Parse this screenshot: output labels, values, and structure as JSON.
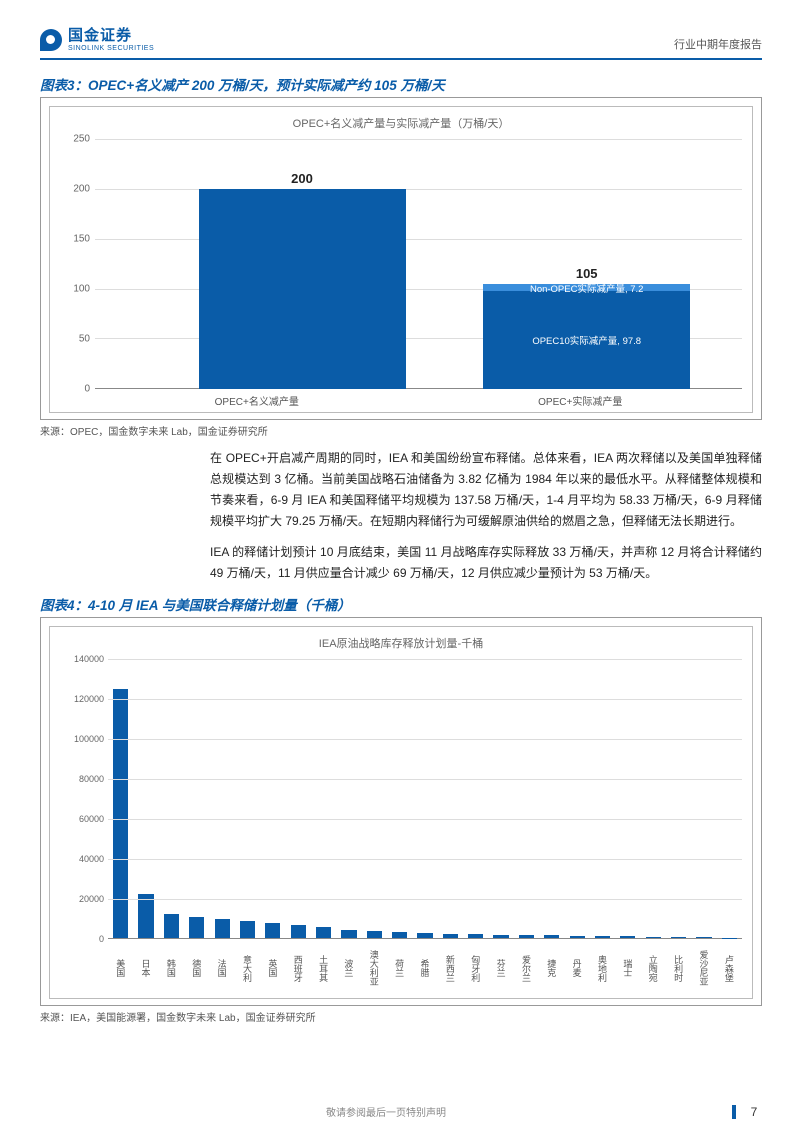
{
  "header": {
    "logo_cn": "国金证券",
    "logo_en": "SINOLINK SECURITIES",
    "doc_type": "行业中期年度报告"
  },
  "colors": {
    "brand": "#0a5ca8",
    "grid": "#dddddd",
    "axis": "#888888",
    "seg_light": "#3a8edc",
    "seg_dark": "#0a5ca8",
    "text_muted": "#666666"
  },
  "chart1": {
    "fig_label": "图表3：OPEC+名义减产 200 万桶/天，预计实际减产约 105 万桶/天",
    "subtitle": "OPEC+名义减产量与实际减产量（万桶/天）",
    "type": "bar",
    "ylim": [
      0,
      250
    ],
    "ytick_step": 50,
    "yticks": [
      0,
      50,
      100,
      150,
      200,
      250
    ],
    "categories": [
      "OPEC+名义减产量",
      "OPEC+实际减产量"
    ],
    "bars": [
      {
        "total": 200,
        "total_label": "200",
        "segments": [
          {
            "value": 200,
            "color": "#0a5ca8"
          }
        ]
      },
      {
        "total": 105,
        "total_label": "105",
        "segments": [
          {
            "value": 97.8,
            "color": "#0a5ca8",
            "label": "OPEC10实际减产量, 97.8"
          },
          {
            "value": 7.2,
            "color": "#3a8edc",
            "label": "Non-OPEC实际减产量, 7.2"
          }
        ]
      }
    ],
    "bar_width_pct": 32,
    "bar_positions_pct": [
      16,
      60
    ],
    "source": "来源：OPEC，国金数字未来 Lab，国金证券研究所"
  },
  "paragraphs": [
    "在 OPEC+开启减产周期的同时，IEA 和美国纷纷宣布释储。总体来看，IEA 两次释储以及美国单独释储总规模达到 3 亿桶。当前美国战略石油储备为 3.82 亿桶为 1984 年以来的最低水平。从释储整体规模和节奏来看，6-9 月 IEA 和美国释储平均规模为 137.58 万桶/天，1-4 月平均为 58.33 万桶/天，6-9 月释储规模平均扩大 79.25 万桶/天。在短期内释储行为可缓解原油供给的燃眉之急，但释储无法长期进行。",
    "IEA 的释储计划预计 10 月底结束，美国 11 月战略库存实际释放 33 万桶/天，并声称 12 月将合计释储约 49 万桶/天，11 月供应量合计减少 69 万桶/天，12 月供应减少量预计为 53 万桶/天。"
  ],
  "chart2": {
    "fig_label": "图表4：4-10 月 IEA 与美国联合释储计划量（千桶）",
    "subtitle": "IEA原油战略库存释放计划量-千桶",
    "type": "bar",
    "ylim": [
      0,
      140000
    ],
    "ytick_step": 20000,
    "yticks": [
      0,
      20000,
      40000,
      60000,
      80000,
      100000,
      120000,
      140000
    ],
    "categories": [
      "美国",
      "日本",
      "韩国",
      "德国",
      "法国",
      "意大利",
      "英国",
      "西班牙",
      "土耳其",
      "波兰",
      "澳大利亚",
      "荷兰",
      "希腊",
      "新西兰",
      "匈牙利",
      "芬兰",
      "爱尔兰",
      "捷克",
      "丹麦",
      "奥地利",
      "瑞士",
      "立陶宛",
      "比利时",
      "爱沙尼亚",
      "卢森堡"
    ],
    "values": [
      125000,
      22000,
      12000,
      10500,
      9500,
      8500,
      7500,
      6500,
      5500,
      4000,
      3500,
      3000,
      2500,
      2200,
      2000,
      1800,
      1600,
      1400,
      1200,
      1000,
      900,
      700,
      700,
      500,
      300
    ],
    "bar_color": "#0a5ca8",
    "source": "来源：IEA，美国能源署，国金数字未来 Lab，国金证券研究所"
  },
  "footer": {
    "disclaimer": "敬请参阅最后一页特别声明",
    "page": "7"
  }
}
